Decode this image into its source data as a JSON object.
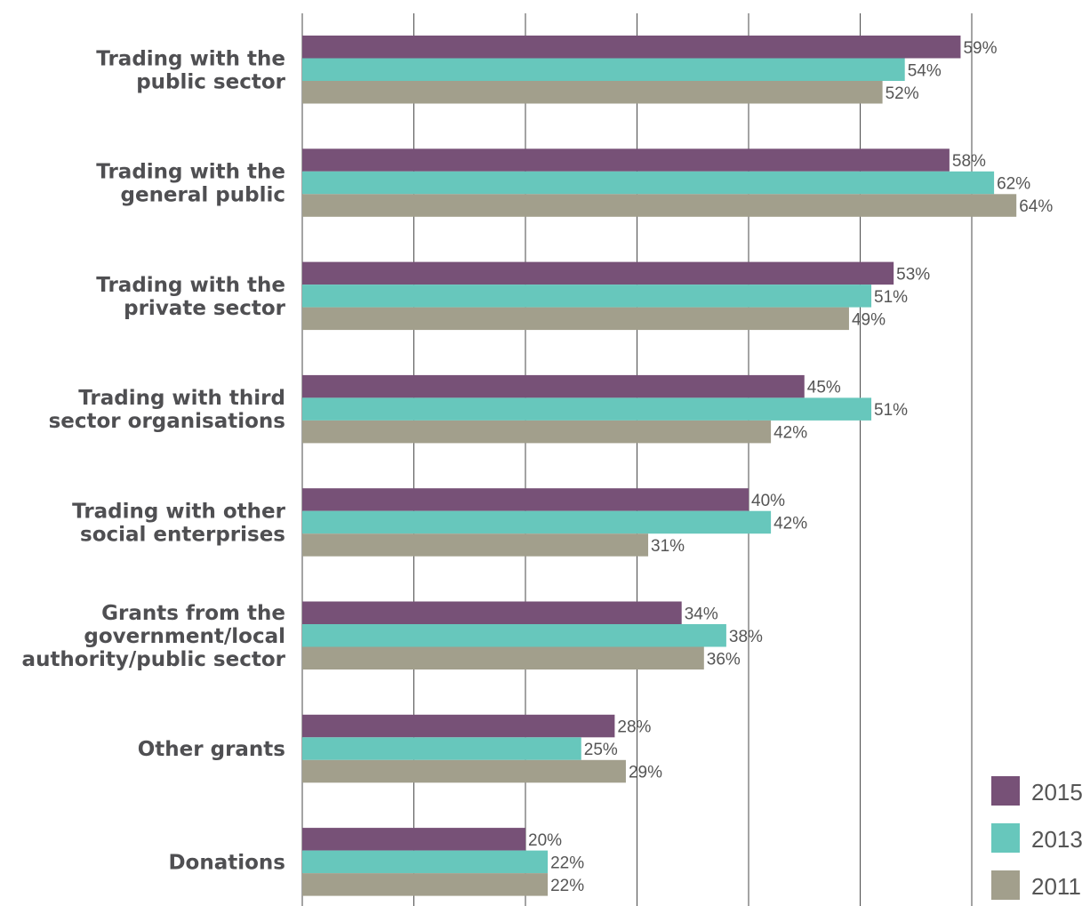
{
  "chart_data": {
    "type": "bar",
    "orientation": "horizontal",
    "categories": [
      [
        "Trading with the",
        "public sector"
      ],
      [
        "Trading with the",
        "general public"
      ],
      [
        "Trading with the",
        "private sector"
      ],
      [
        "Trading with third",
        "sector organisations"
      ],
      [
        "Trading with other",
        "social enterprises"
      ],
      [
        "Grants from the",
        "government/local",
        "authority/public sector"
      ],
      [
        "Other grants"
      ],
      [
        "Donations"
      ]
    ],
    "series": [
      {
        "name": "2015",
        "color": "#775177",
        "values": [
          59,
          58,
          53,
          45,
          40,
          34,
          28,
          20
        ]
      },
      {
        "name": "2013",
        "color": "#67c7bc",
        "values": [
          54,
          62,
          51,
          51,
          42,
          38,
          25,
          22
        ]
      },
      {
        "name": "2011",
        "color": "#a29f8c",
        "values": [
          52,
          64,
          49,
          42,
          31,
          36,
          29,
          22
        ]
      }
    ],
    "value_suffix": "%",
    "xlim": [
      0,
      70
    ],
    "grid": true,
    "legend": "bottom-right"
  }
}
